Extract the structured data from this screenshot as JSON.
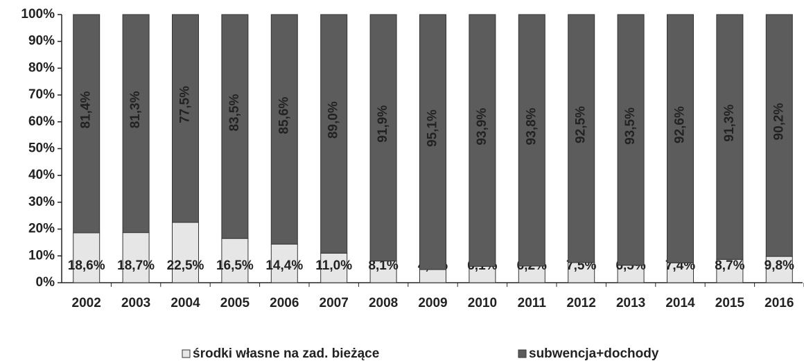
{
  "chart_data": {
    "type": "stacked_bar",
    "categories": [
      "2002",
      "2003",
      "2004",
      "2005",
      "2006",
      "2007",
      "2008",
      "2009",
      "2010",
      "2011",
      "2012",
      "2013",
      "2014",
      "2015",
      "2016"
    ],
    "series": [
      {
        "name": "środki własne na zad. bieżące",
        "color": "#e6e6e6",
        "values": [
          18.6,
          18.7,
          22.5,
          16.5,
          14.4,
          11.0,
          8.1,
          4.9,
          6.1,
          6.2,
          7.5,
          6.5,
          7.4,
          8.7,
          9.8
        ],
        "value_labels": [
          "18,6%",
          "18,7%",
          "22,5%",
          "16,5%",
          "14,4%",
          "11,0%",
          "8,1%",
          "4,9%",
          "6,1%",
          "6,2%",
          "7,5%",
          "6,5%",
          "7,4%",
          "8,7%",
          "9,8%"
        ]
      },
      {
        "name": "subwencja+dochody",
        "color": "#5c5c5c",
        "values": [
          81.4,
          81.3,
          77.5,
          83.5,
          85.6,
          89.0,
          91.9,
          95.1,
          93.9,
          93.8,
          92.5,
          93.5,
          92.6,
          91.3,
          90.2
        ],
        "value_labels": [
          "81,4%",
          "81,3%",
          "77,5%",
          "83,5%",
          "85,6%",
          "89,0%",
          "91,9%",
          "95,1%",
          "93,9%",
          "93,8%",
          "92,5%",
          "93,5%",
          "92,6%",
          "91,3%",
          "90,2%"
        ]
      }
    ],
    "ylim": [
      0,
      100
    ],
    "yticks": [
      {
        "value": 0,
        "label": "0%"
      },
      {
        "value": 10,
        "label": "10%"
      },
      {
        "value": 20,
        "label": "20%"
      },
      {
        "value": 30,
        "label": "30%"
      },
      {
        "value": 40,
        "label": "40%"
      },
      {
        "value": 50,
        "label": "50%"
      },
      {
        "value": 60,
        "label": "60%"
      },
      {
        "value": 70,
        "label": "70%"
      },
      {
        "value": 80,
        "label": "80%"
      },
      {
        "value": 90,
        "label": "90%"
      },
      {
        "value": 100,
        "label": "100%"
      }
    ],
    "grid": false
  }
}
